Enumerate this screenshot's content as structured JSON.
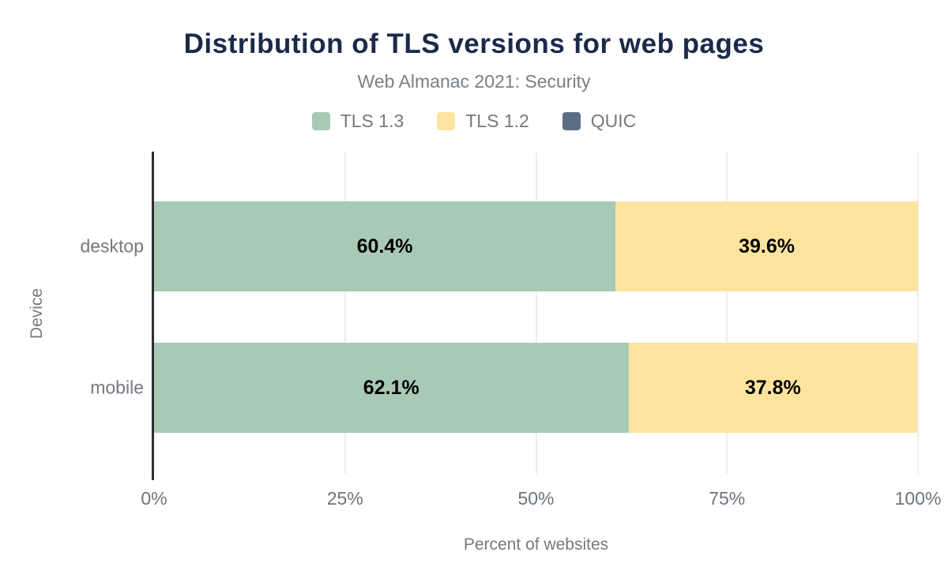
{
  "title": "Distribution of TLS versions for web pages",
  "subtitle": "Web Almanac 2021: Security",
  "colors": {
    "tls_1_3": "#a8c9b6",
    "tls_1_2": "#fde49e",
    "quic": "#5c6e85",
    "title_text": "#1b2a49",
    "muted_text": "#75797e",
    "gridline": "#ededed",
    "axis_line": "#303030",
    "value_label": "#000000"
  },
  "legend": [
    {
      "label": "TLS 1.3",
      "color": "#a8c9b6"
    },
    {
      "label": "TLS 1.2",
      "color": "#fde49e"
    },
    {
      "label": "QUIC",
      "color": "#5c6e85"
    }
  ],
  "chart_data": {
    "type": "bar",
    "orientation": "horizontal",
    "stacked": true,
    "title": "Distribution of TLS versions for web pages",
    "subtitle": "Web Almanac 2021: Security",
    "categories": [
      "desktop",
      "mobile"
    ],
    "series": [
      {
        "name": "TLS 1.3",
        "color": "#a8c9b6",
        "values": [
          60.4,
          62.1
        ],
        "labels": [
          "60.4%",
          "62.1%"
        ]
      },
      {
        "name": "TLS 1.2",
        "color": "#fde49e",
        "values": [
          39.6,
          37.8
        ],
        "labels": [
          "39.6%",
          "37.8%"
        ]
      },
      {
        "name": "QUIC",
        "color": "#5c6e85",
        "values": [
          0,
          0
        ],
        "labels": [
          "",
          ""
        ]
      }
    ],
    "xlabel": "Percent of websites",
    "ylabel": "Device",
    "xlim": [
      0,
      100
    ],
    "xticks": [
      {
        "label": "0%",
        "value": 0
      },
      {
        "label": "25%",
        "value": 25
      },
      {
        "label": "50%",
        "value": 50
      },
      {
        "label": "75%",
        "value": 75
      },
      {
        "label": "100%",
        "value": 100
      }
    ],
    "grid": true,
    "legend_position": "top"
  }
}
